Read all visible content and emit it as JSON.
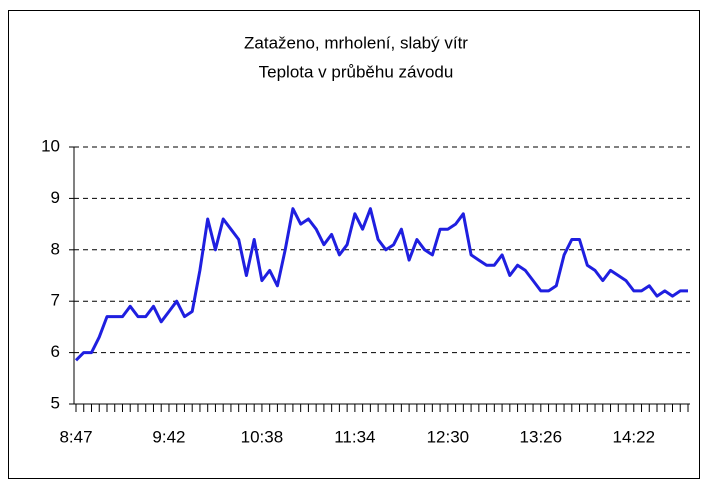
{
  "chart_data": {
    "type": "line",
    "title": "Zataženo, mrholení, slabý vítr",
    "subtitle": "Teplota v průběhu závodu",
    "categories": [
      "8:47",
      null,
      null,
      null,
      null,
      null,
      null,
      null,
      null,
      null,
      null,
      null,
      "9:42",
      null,
      null,
      null,
      null,
      null,
      null,
      null,
      null,
      null,
      null,
      null,
      "10:38",
      null,
      null,
      null,
      null,
      null,
      null,
      null,
      null,
      null,
      null,
      null,
      "11:34",
      null,
      null,
      null,
      null,
      null,
      null,
      null,
      null,
      null,
      null,
      null,
      "12:30",
      null,
      null,
      null,
      null,
      null,
      null,
      null,
      null,
      null,
      null,
      null,
      "13:26",
      null,
      null,
      null,
      null,
      null,
      null,
      null,
      null,
      null,
      null,
      null,
      "14:22",
      null,
      null,
      null,
      null,
      null,
      null,
      null
    ],
    "values": [
      5.85,
      6.0,
      6.0,
      6.3,
      6.7,
      6.7,
      6.7,
      6.9,
      6.7,
      6.7,
      6.9,
      6.6,
      6.8,
      7.0,
      6.7,
      6.8,
      7.6,
      8.6,
      8.0,
      8.6,
      8.4,
      8.2,
      7.5,
      8.2,
      7.4,
      7.6,
      7.3,
      8.0,
      8.8,
      8.5,
      8.6,
      8.4,
      8.1,
      8.3,
      7.9,
      8.1,
      8.7,
      8.4,
      8.8,
      8.2,
      8.0,
      8.1,
      8.4,
      7.8,
      8.2,
      8.0,
      7.9,
      8.4,
      8.4,
      8.5,
      8.7,
      7.9,
      7.8,
      7.7,
      7.7,
      7.9,
      7.5,
      7.7,
      7.6,
      7.4,
      7.2,
      7.2,
      7.3,
      7.9,
      8.2,
      8.2,
      7.7,
      7.6,
      7.4,
      7.6,
      7.5,
      7.4,
      7.2,
      7.2,
      7.3,
      7.1,
      7.2,
      7.1,
      7.2,
      7.2
    ],
    "color": "#1f1fe0",
    "ylim": [
      5,
      10
    ],
    "yticks": [
      5,
      6,
      7,
      8,
      9,
      10
    ],
    "grid": true
  }
}
